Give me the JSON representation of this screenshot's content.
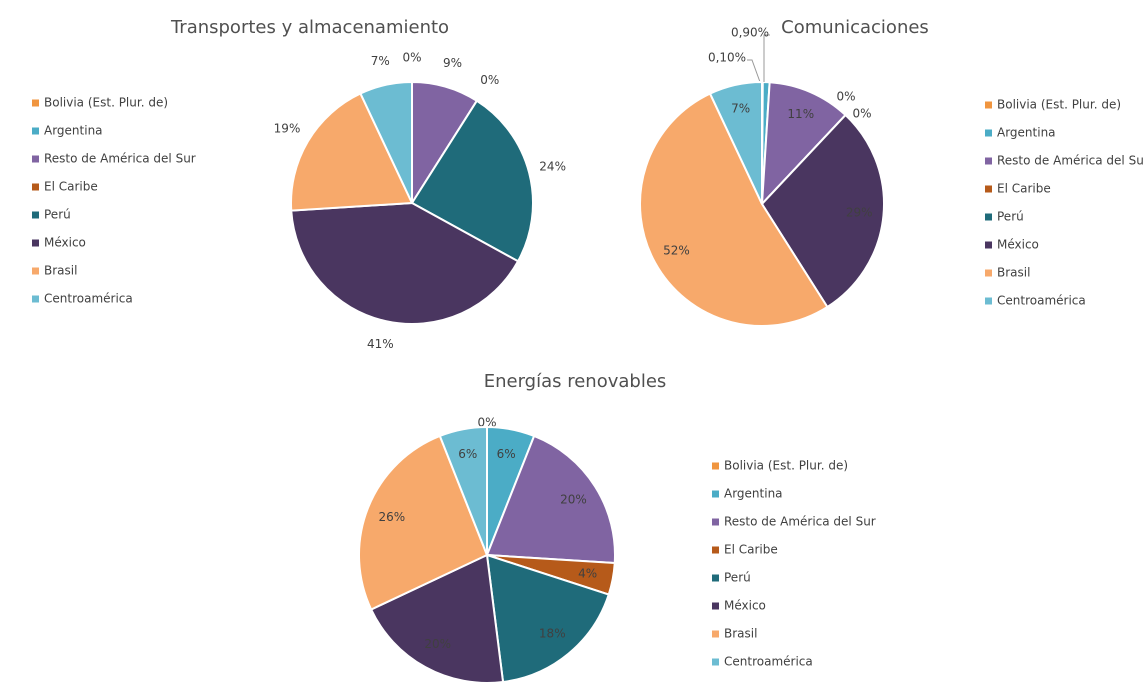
{
  "chart_data": [
    {
      "type": "pie",
      "title": "Transportes y almacenamiento",
      "categories": [
        "Bolivia (Est. Plur. de)",
        "Argentina",
        "Resto de América del Sur",
        "El Caribe",
        "Perú",
        "México",
        "Brasil",
        "Centroamérica"
      ],
      "values": [
        0,
        0,
        9,
        0,
        24,
        41,
        19,
        7
      ],
      "value_labels": [
        null,
        "0%",
        "9%",
        "0%",
        "24%",
        "41%",
        "19%",
        "7%"
      ],
      "colors": [
        "#f0953f",
        "#4bacc6",
        "#8064a2",
        "#b65a1a",
        "#1f6b7a",
        "#4a3660",
        "#f7a96b",
        "#6cbcd2"
      ],
      "legend": "left"
    },
    {
      "type": "pie",
      "title": "Comunicaciones",
      "categories": [
        "Bolivia (Est. Plur. de)",
        "Argentina",
        "Resto de América del Sur",
        "El Caribe",
        "Perú",
        "México",
        "Brasil",
        "Centroamérica"
      ],
      "values": [
        0.1,
        0.9,
        11,
        0,
        0,
        29,
        52,
        7
      ],
      "value_labels": [
        "0,10%",
        "0,90%",
        "11%",
        "0%",
        "0%",
        "29%",
        "52%",
        "7%"
      ],
      "colors": [
        "#f0953f",
        "#4bacc6",
        "#8064a2",
        "#b65a1a",
        "#1f6b7a",
        "#4a3660",
        "#f7a96b",
        "#6cbcd2"
      ],
      "legend": "right"
    },
    {
      "type": "pie",
      "title": "Energías renovables",
      "categories": [
        "Bolivia (Est. Plur. de)",
        "Argentina",
        "Resto de América del Sur",
        "El Caribe",
        "Perú",
        "México",
        "Brasil",
        "Centroamérica"
      ],
      "values": [
        0,
        6,
        20,
        4,
        18,
        20,
        26,
        6
      ],
      "value_labels": [
        "0%",
        "6%",
        "20%",
        "4%",
        "18%",
        "20%",
        "26%",
        "6%"
      ],
      "colors": [
        "#f0953f",
        "#4bacc6",
        "#8064a2",
        "#b65a1a",
        "#1f6b7a",
        "#4a3660",
        "#f7a96b",
        "#6cbcd2"
      ],
      "legend": "right"
    }
  ]
}
